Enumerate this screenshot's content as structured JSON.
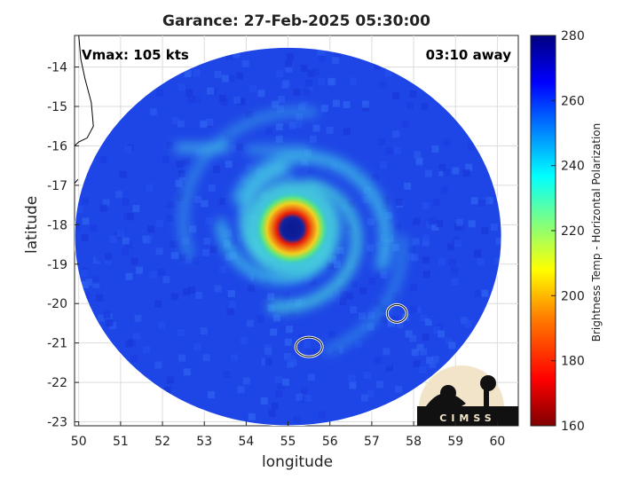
{
  "chart_data": {
    "type": "heatmap",
    "title": "Garance: 27-Feb-2025 05:30:00",
    "xlabel": "longitude",
    "ylabel": "latitude",
    "xlim": [
      49.9,
      60.5
    ],
    "ylim": [
      -23.1,
      -13.2
    ],
    "xticks": [
      50,
      51,
      52,
      53,
      54,
      55,
      56,
      57,
      58,
      59,
      60
    ],
    "yticks": [
      -14,
      -15,
      -16,
      -17,
      -18,
      -19,
      -20,
      -21,
      -22,
      -23
    ],
    "grid": true,
    "annotations": {
      "vmax": "Vmax: 105 kts",
      "time_away": "03:10 away"
    },
    "colorbar": {
      "label": "Brightness Temp - Horizontal Polarization",
      "min": 160,
      "max": 280,
      "ticks": [
        160,
        180,
        200,
        220,
        240,
        260,
        280
      ],
      "colormap": "jet"
    },
    "storm_center": {
      "lon": 55.1,
      "lat": -18.1
    },
    "swath": {
      "center_lon": 55.0,
      "center_lat": -18.3,
      "radius_lon": 5.1,
      "radius_lat": 4.8
    },
    "islands": [
      {
        "name": "Reunion",
        "lon": 55.5,
        "lat": -21.1
      },
      {
        "name": "Mauritius",
        "lon": 57.6,
        "lat": -20.25
      }
    ],
    "logo": {
      "text": "CIMSS"
    }
  },
  "colors": {
    "background_tb": "#1e46e6",
    "ring_red": "#e61e0a",
    "eye": "#0a1e96",
    "warm_band": "#28c8d2"
  }
}
